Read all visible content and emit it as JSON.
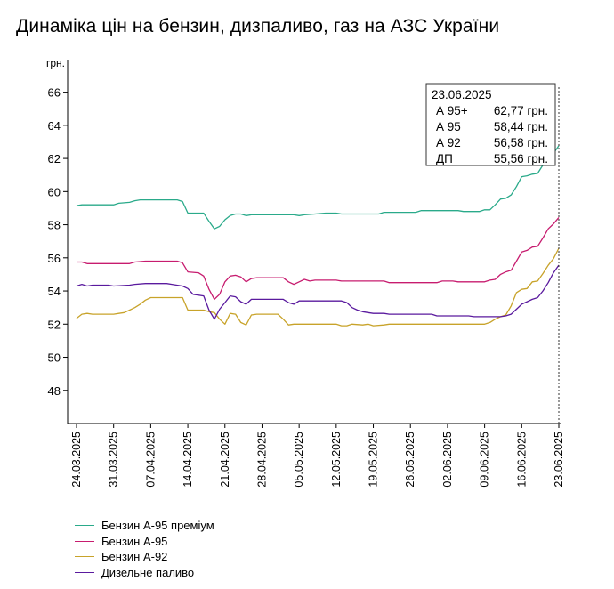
{
  "title": "Динаміка цін на бензин, дизпаливо, газ на АЗС України",
  "chart_data": {
    "type": "line",
    "ylabel": "грн.",
    "ylim": [
      46,
      67
    ],
    "yticks": [
      48,
      50,
      52,
      54,
      56,
      58,
      60,
      62,
      64,
      66
    ],
    "x_range": [
      "2025-03-24",
      "2025-06-23"
    ],
    "x_ticks": [
      "24.03.2025",
      "31.03.2025",
      "07.04.2025",
      "14.04.2025",
      "21.04.2025",
      "28.04.2025",
      "05.05.2025",
      "12.05.2025",
      "19.05.2025",
      "26.05.2025",
      "02.06.2025",
      "09.06.2025",
      "16.06.2025",
      "23.06.2025"
    ],
    "grid": false,
    "legend_position": "bottom-left",
    "tooltip": {
      "date": "23.06.2025",
      "rows": [
        {
          "label": "А 95+",
          "value": "62,77 грн."
        },
        {
          "label": "А 95",
          "value": "58,44 грн."
        },
        {
          "label": "А 92",
          "value": "56,58 грн."
        },
        {
          "label": "ДП",
          "value": "55,56 грн."
        }
      ]
    },
    "series": [
      {
        "name": "Бензин А-95 преміум",
        "color": "#2aaa8a",
        "points": [
          [
            "2025-03-24",
            59.15
          ],
          [
            "2025-03-25",
            59.2
          ],
          [
            "2025-03-31",
            59.2
          ],
          [
            "2025-04-01",
            59.3
          ],
          [
            "2025-04-03",
            59.35
          ],
          [
            "2025-04-04",
            59.45
          ],
          [
            "2025-04-05",
            59.5
          ],
          [
            "2025-04-12",
            59.5
          ],
          [
            "2025-04-13",
            59.4
          ],
          [
            "2025-04-14",
            58.7
          ],
          [
            "2025-04-17",
            58.7
          ],
          [
            "2025-04-18",
            58.2
          ],
          [
            "2025-04-19",
            57.75
          ],
          [
            "2025-04-20",
            57.9
          ],
          [
            "2025-04-21",
            58.3
          ],
          [
            "2025-04-22",
            58.55
          ],
          [
            "2025-04-23",
            58.65
          ],
          [
            "2025-04-24",
            58.65
          ],
          [
            "2025-04-25",
            58.55
          ],
          [
            "2025-04-26",
            58.6
          ],
          [
            "2025-05-04",
            58.6
          ],
          [
            "2025-05-05",
            58.55
          ],
          [
            "2025-05-06",
            58.6
          ],
          [
            "2025-05-08",
            58.65
          ],
          [
            "2025-05-10",
            58.7
          ],
          [
            "2025-05-12",
            58.7
          ],
          [
            "2025-05-13",
            58.65
          ],
          [
            "2025-05-20",
            58.65
          ],
          [
            "2025-05-21",
            58.75
          ],
          [
            "2025-05-27",
            58.75
          ],
          [
            "2025-05-28",
            58.85
          ],
          [
            "2025-06-04",
            58.85
          ],
          [
            "2025-06-05",
            58.8
          ],
          [
            "2025-06-08",
            58.8
          ],
          [
            "2025-06-09",
            58.9
          ],
          [
            "2025-06-10",
            58.9
          ],
          [
            "2025-06-11",
            59.2
          ],
          [
            "2025-06-12",
            59.55
          ],
          [
            "2025-06-13",
            59.6
          ],
          [
            "2025-06-14",
            59.8
          ],
          [
            "2025-06-15",
            60.3
          ],
          [
            "2025-06-16",
            60.9
          ],
          [
            "2025-06-17",
            60.95
          ],
          [
            "2025-06-18",
            61.05
          ],
          [
            "2025-06-19",
            61.1
          ],
          [
            "2025-06-20",
            61.6
          ],
          [
            "2025-06-21",
            61.95
          ],
          [
            "2025-06-22",
            62.3
          ],
          [
            "2025-06-23",
            62.77
          ]
        ]
      },
      {
        "name": "Бензин А-95",
        "color": "#c71c6f",
        "points": [
          [
            "2025-03-24",
            55.75
          ],
          [
            "2025-03-25",
            55.75
          ],
          [
            "2025-03-26",
            55.65
          ],
          [
            "2025-04-03",
            55.65
          ],
          [
            "2025-04-04",
            55.75
          ],
          [
            "2025-04-06",
            55.8
          ],
          [
            "2025-04-12",
            55.8
          ],
          [
            "2025-04-13",
            55.7
          ],
          [
            "2025-04-14",
            55.15
          ],
          [
            "2025-04-16",
            55.1
          ],
          [
            "2025-04-17",
            54.9
          ],
          [
            "2025-04-18",
            54.1
          ],
          [
            "2025-04-19",
            53.5
          ],
          [
            "2025-04-20",
            53.8
          ],
          [
            "2025-04-21",
            54.55
          ],
          [
            "2025-04-22",
            54.9
          ],
          [
            "2025-04-23",
            54.95
          ],
          [
            "2025-04-24",
            54.85
          ],
          [
            "2025-04-25",
            54.55
          ],
          [
            "2025-04-26",
            54.75
          ],
          [
            "2025-04-27",
            54.8
          ],
          [
            "2025-05-02",
            54.8
          ],
          [
            "2025-05-03",
            54.55
          ],
          [
            "2025-05-04",
            54.4
          ],
          [
            "2025-05-05",
            54.55
          ],
          [
            "2025-05-06",
            54.7
          ],
          [
            "2025-05-07",
            54.6
          ],
          [
            "2025-05-08",
            54.65
          ],
          [
            "2025-05-12",
            54.65
          ],
          [
            "2025-05-13",
            54.6
          ],
          [
            "2025-05-21",
            54.6
          ],
          [
            "2025-05-22",
            54.5
          ],
          [
            "2025-05-31",
            54.5
          ],
          [
            "2025-06-01",
            54.6
          ],
          [
            "2025-06-03",
            54.6
          ],
          [
            "2025-06-04",
            54.55
          ],
          [
            "2025-06-09",
            54.55
          ],
          [
            "2025-06-10",
            54.65
          ],
          [
            "2025-06-11",
            54.7
          ],
          [
            "2025-06-12",
            55.0
          ],
          [
            "2025-06-13",
            55.15
          ],
          [
            "2025-06-14",
            55.25
          ],
          [
            "2025-06-15",
            55.8
          ],
          [
            "2025-06-16",
            56.35
          ],
          [
            "2025-06-17",
            56.45
          ],
          [
            "2025-06-18",
            56.65
          ],
          [
            "2025-06-19",
            56.7
          ],
          [
            "2025-06-20",
            57.2
          ],
          [
            "2025-06-21",
            57.75
          ],
          [
            "2025-06-22",
            58.05
          ],
          [
            "2025-06-23",
            58.44
          ]
        ]
      },
      {
        "name": "Бензин А-92",
        "color": "#c8a32a",
        "points": [
          [
            "2025-03-24",
            52.35
          ],
          [
            "2025-03-25",
            52.6
          ],
          [
            "2025-03-26",
            52.65
          ],
          [
            "2025-03-27",
            52.6
          ],
          [
            "2025-03-31",
            52.6
          ],
          [
            "2025-04-01",
            52.65
          ],
          [
            "2025-04-02",
            52.7
          ],
          [
            "2025-04-03",
            52.85
          ],
          [
            "2025-04-04",
            53.0
          ],
          [
            "2025-04-05",
            53.2
          ],
          [
            "2025-04-06",
            53.45
          ],
          [
            "2025-04-07",
            53.6
          ],
          [
            "2025-04-13",
            53.6
          ],
          [
            "2025-04-14",
            52.85
          ],
          [
            "2025-04-17",
            52.85
          ],
          [
            "2025-04-18",
            52.75
          ],
          [
            "2025-04-19",
            52.7
          ],
          [
            "2025-04-20",
            52.3
          ],
          [
            "2025-04-21",
            52.0
          ],
          [
            "2025-04-22",
            52.65
          ],
          [
            "2025-04-23",
            52.6
          ],
          [
            "2025-04-24",
            52.1
          ],
          [
            "2025-04-25",
            51.95
          ],
          [
            "2025-04-26",
            52.55
          ],
          [
            "2025-04-27",
            52.6
          ],
          [
            "2025-05-01",
            52.6
          ],
          [
            "2025-05-02",
            52.3
          ],
          [
            "2025-05-03",
            51.95
          ],
          [
            "2025-05-04",
            52.0
          ],
          [
            "2025-05-12",
            52.0
          ],
          [
            "2025-05-13",
            51.9
          ],
          [
            "2025-05-14",
            51.9
          ],
          [
            "2025-05-15",
            52.0
          ],
          [
            "2025-05-17",
            51.95
          ],
          [
            "2025-05-18",
            52.0
          ],
          [
            "2025-05-19",
            51.9
          ],
          [
            "2025-05-21",
            51.95
          ],
          [
            "2025-05-22",
            52.0
          ],
          [
            "2025-06-09",
            52.0
          ],
          [
            "2025-06-10",
            52.1
          ],
          [
            "2025-06-11",
            52.3
          ],
          [
            "2025-06-12",
            52.45
          ],
          [
            "2025-06-13",
            52.55
          ],
          [
            "2025-06-14",
            53.1
          ],
          [
            "2025-06-15",
            53.9
          ],
          [
            "2025-06-16",
            54.1
          ],
          [
            "2025-06-17",
            54.15
          ],
          [
            "2025-06-18",
            54.55
          ],
          [
            "2025-06-19",
            54.6
          ],
          [
            "2025-06-20",
            55.05
          ],
          [
            "2025-06-21",
            55.55
          ],
          [
            "2025-06-22",
            55.95
          ],
          [
            "2025-06-23",
            56.58
          ]
        ]
      },
      {
        "name": "Дизельне паливо",
        "color": "#5a1a9e",
        "points": [
          [
            "2025-03-24",
            54.3
          ],
          [
            "2025-03-25",
            54.4
          ],
          [
            "2025-03-26",
            54.3
          ],
          [
            "2025-03-27",
            54.35
          ],
          [
            "2025-03-30",
            54.35
          ],
          [
            "2025-03-31",
            54.3
          ],
          [
            "2025-04-03",
            54.35
          ],
          [
            "2025-04-04",
            54.4
          ],
          [
            "2025-04-06",
            54.45
          ],
          [
            "2025-04-10",
            54.45
          ],
          [
            "2025-04-11",
            54.4
          ],
          [
            "2025-04-13",
            54.3
          ],
          [
            "2025-04-14",
            54.15
          ],
          [
            "2025-04-15",
            53.8
          ],
          [
            "2025-04-17",
            53.7
          ],
          [
            "2025-04-18",
            52.85
          ],
          [
            "2025-04-19",
            52.3
          ],
          [
            "2025-04-20",
            52.9
          ],
          [
            "2025-04-21",
            53.3
          ],
          [
            "2025-04-22",
            53.7
          ],
          [
            "2025-04-23",
            53.65
          ],
          [
            "2025-04-24",
            53.35
          ],
          [
            "2025-04-25",
            53.2
          ],
          [
            "2025-04-26",
            53.5
          ],
          [
            "2025-05-02",
            53.5
          ],
          [
            "2025-05-03",
            53.3
          ],
          [
            "2025-05-04",
            53.2
          ],
          [
            "2025-05-05",
            53.4
          ],
          [
            "2025-05-13",
            53.4
          ],
          [
            "2025-05-14",
            53.3
          ],
          [
            "2025-05-15",
            53.0
          ],
          [
            "2025-05-16",
            52.85
          ],
          [
            "2025-05-17",
            52.75
          ],
          [
            "2025-05-18",
            52.7
          ],
          [
            "2025-05-19",
            52.65
          ],
          [
            "2025-05-21",
            52.65
          ],
          [
            "2025-05-22",
            52.6
          ],
          [
            "2025-05-30",
            52.6
          ],
          [
            "2025-05-31",
            52.5
          ],
          [
            "2025-06-06",
            52.5
          ],
          [
            "2025-06-07",
            52.45
          ],
          [
            "2025-06-12",
            52.45
          ],
          [
            "2025-06-13",
            52.5
          ],
          [
            "2025-06-14",
            52.6
          ],
          [
            "2025-06-15",
            52.9
          ],
          [
            "2025-06-16",
            53.2
          ],
          [
            "2025-06-17",
            53.35
          ],
          [
            "2025-06-18",
            53.5
          ],
          [
            "2025-06-19",
            53.6
          ],
          [
            "2025-06-20",
            54.0
          ],
          [
            "2025-06-21",
            54.5
          ],
          [
            "2025-06-22",
            55.1
          ],
          [
            "2025-06-23",
            55.56
          ]
        ]
      }
    ]
  }
}
